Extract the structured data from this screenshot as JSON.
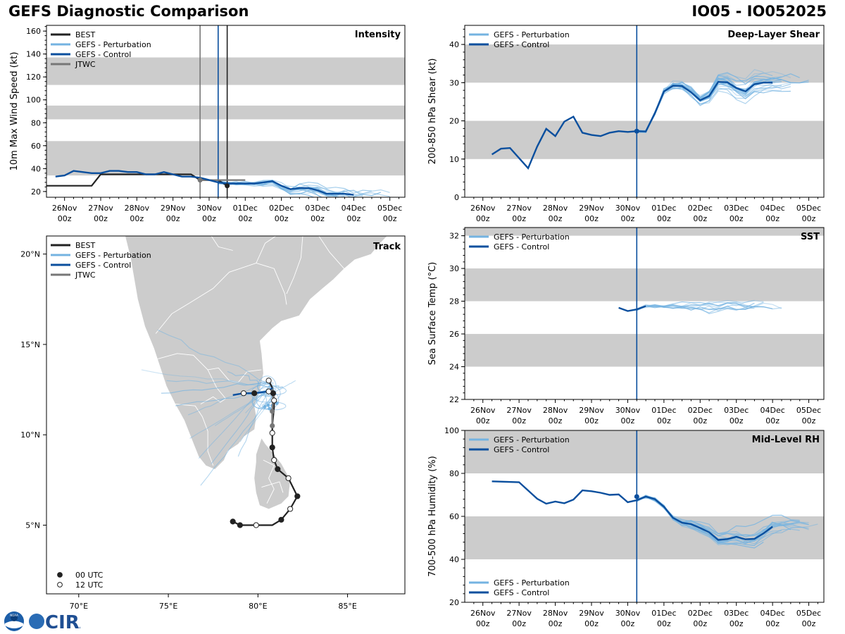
{
  "header": {
    "title": "GEFS Diagnostic Comparison",
    "storm": "IO05 - IO052025"
  },
  "colors": {
    "best": "#222222",
    "perturbation": "#74b3e1",
    "control": "#0a4f9e",
    "jtwc": "#777777",
    "band": "#cccccc",
    "land": "#cccccc",
    "init_line": "#0a4f9e"
  },
  "time_axis": {
    "labels": [
      {
        "day": "26Nov",
        "hour": "00z",
        "t": 0
      },
      {
        "day": "27Nov",
        "hour": "00z",
        "t": 24
      },
      {
        "day": "28Nov",
        "hour": "00z",
        "t": 48
      },
      {
        "day": "29Nov",
        "hour": "00z",
        "t": 72
      },
      {
        "day": "30Nov",
        "hour": "00z",
        "t": 96
      },
      {
        "day": "01Dec",
        "hour": "00z",
        "t": 120
      },
      {
        "day": "02Dec",
        "hour": "00z",
        "t": 144
      },
      {
        "day": "03Dec",
        "hour": "00z",
        "t": 168
      },
      {
        "day": "04Dec",
        "hour": "00z",
        "t": 192
      },
      {
        "day": "05Dec",
        "hour": "00z",
        "t": 216
      }
    ],
    "range_hours": [
      -12,
      226
    ],
    "init_hour": 102
  },
  "chart_data": [
    {
      "id": "intensity",
      "type": "line",
      "label": "Intensity",
      "ylabel": "10m Max Wind Speed (kt)",
      "ylim": [
        15,
        165
      ],
      "yticks": [
        20,
        40,
        60,
        80,
        100,
        120,
        140,
        160
      ],
      "bands": [
        [
          34,
          64
        ],
        [
          83,
          95
        ],
        [
          113,
          137
        ]
      ],
      "legend": [
        "BEST",
        "GEFS - Perturbation",
        "GEFS - Control",
        "JTWC"
      ],
      "vlines": [
        {
          "t": 90,
          "color": "jtwc"
        },
        {
          "t": 102,
          "color": "control"
        },
        {
          "t": 108,
          "color": "best"
        }
      ],
      "best": {
        "t": [
          -12,
          -6,
          0,
          6,
          12,
          18,
          24,
          30,
          36,
          42,
          48,
          54,
          60,
          66,
          72,
          78,
          84,
          90,
          96,
          102,
          108
        ],
        "v": [
          25,
          25,
          25,
          25,
          25,
          25,
          35,
          35,
          35,
          35,
          35,
          35,
          35,
          35,
          35,
          35,
          35,
          30,
          30,
          30,
          25
        ]
      },
      "control": {
        "t": [
          -6,
          0,
          6,
          12,
          18,
          24,
          30,
          36,
          42,
          48,
          54,
          60,
          66,
          72,
          78,
          84,
          90,
          96,
          102,
          108,
          114,
          120,
          126,
          132,
          138,
          144,
          150,
          156,
          162,
          168,
          174,
          180,
          186,
          192
        ],
        "v": [
          33,
          34,
          38,
          37,
          36,
          36,
          38,
          38,
          37,
          37,
          35,
          35,
          37,
          35,
          33,
          33,
          32,
          30,
          28,
          27,
          27,
          27,
          27,
          28,
          29,
          25,
          22,
          23,
          23,
          21,
          18,
          18,
          18,
          17
        ]
      },
      "jtwc": {
        "t": [
          90,
          96,
          102,
          108,
          114,
          120
        ],
        "v": [
          30,
          30,
          30,
          30,
          30,
          30
        ]
      },
      "points": [
        {
          "t": 90,
          "v": 30,
          "color": "jtwc"
        },
        {
          "t": 108,
          "v": 25,
          "color": "best"
        }
      ],
      "perturbations": 14
    },
    {
      "id": "shear",
      "type": "line",
      "label": "Deep-Layer Shear",
      "ylabel": "200-850 hPa Shear (kt)",
      "ylim": [
        0,
        45
      ],
      "yticks": [
        0,
        10,
        20,
        30,
        40
      ],
      "bands": [
        [
          10,
          20
        ],
        [
          30,
          40
        ]
      ],
      "legend": [
        "GEFS - Perturbation",
        "GEFS - Control"
      ],
      "control": {
        "t": [
          6,
          12,
          18,
          30,
          36,
          42,
          48,
          54,
          60,
          66,
          72,
          78,
          84,
          90,
          96,
          102,
          108,
          114,
          120,
          126,
          132,
          138,
          144,
          150,
          156,
          162,
          168,
          174,
          180,
          186,
          192
        ],
        "v": [
          11.2,
          12.7,
          12.9,
          7.6,
          13.3,
          17.9,
          16.0,
          19.8,
          21.1,
          16.9,
          16.3,
          16.0,
          16.9,
          17.3,
          17.1,
          17.3,
          17.2,
          22.0,
          27.7,
          29.2,
          29.1,
          27.5,
          25.4,
          26.5,
          30.2,
          30.1,
          28.6,
          27.7,
          29.6,
          30.0,
          30.0
        ]
      },
      "init_value": 17.3,
      "perturbations": 20
    },
    {
      "id": "sst",
      "type": "line",
      "label": "SST",
      "ylabel": "Sea Surface Temp (°C)",
      "ylim": [
        22,
        32.5
      ],
      "yticks": [
        22,
        24,
        26,
        28,
        30,
        32
      ],
      "bands": [
        [
          24,
          26
        ],
        [
          28,
          30
        ],
        [
          32,
          32.5
        ]
      ],
      "legend": [
        "GEFS - Perturbation",
        "GEFS - Control"
      ],
      "control": {
        "t": [
          90,
          96,
          102,
          108
        ],
        "v": [
          27.6,
          27.4,
          27.5,
          27.7
        ]
      },
      "perturbations": 10
    },
    {
      "id": "rh",
      "type": "line",
      "label": "Mid-Level RH",
      "ylabel": "700-500 hPa Humidity (%)",
      "ylim": [
        20,
        100
      ],
      "yticks": [
        20,
        40,
        60,
        80,
        100
      ],
      "bands": [
        [
          40,
          60
        ],
        [
          80,
          100
        ]
      ],
      "legend": [
        "GEFS - Perturbation",
        "GEFS - Control"
      ],
      "control": {
        "t": [
          6,
          24,
          36,
          42,
          48,
          54,
          60,
          66,
          72,
          78,
          84,
          90,
          96,
          102,
          108,
          114,
          120,
          126,
          132,
          138,
          144,
          150,
          156,
          162,
          168,
          174,
          180,
          186,
          192
        ],
        "v": [
          76.3,
          75.9,
          68.2,
          65.9,
          66.9,
          66.1,
          67.8,
          72.1,
          71.7,
          71.0,
          70.0,
          70.2,
          66.6,
          67.5,
          69.2,
          68.0,
          64.5,
          59.3,
          57.0,
          56.4,
          54.6,
          52.6,
          49.0,
          49.4,
          50.5,
          49.3,
          49.5,
          52.1,
          55.2
        ]
      },
      "init_value": 69.2,
      "perturbations": 18
    }
  ],
  "track": {
    "label": "Track",
    "legend": [
      "BEST",
      "GEFS - Perturbation",
      "GEFS - Control",
      "JTWC"
    ],
    "marker_legend": [
      {
        "label": "00 UTC",
        "fill": "#222222"
      },
      {
        "label": "12 UTC",
        "fill": "#ffffff"
      }
    ],
    "lon_ticks": [
      {
        "lon": 70,
        "label": "70°E"
      },
      {
        "lon": 75,
        "label": "75°E"
      },
      {
        "lon": 80,
        "label": "80°E"
      },
      {
        "lon": 85,
        "label": "85°E"
      }
    ],
    "lat_ticks": [
      {
        "lat": 5,
        "label": "5°N"
      },
      {
        "lat": 10,
        "label": "10°N"
      },
      {
        "lat": 15,
        "label": "15°N"
      },
      {
        "lat": 20,
        "label": "20°N"
      }
    ],
    "best": [
      [
        78.6,
        5.2
      ],
      [
        79.0,
        5.0
      ],
      [
        79.9,
        5.0
      ],
      [
        80.8,
        5.0
      ],
      [
        81.3,
        5.3
      ],
      [
        81.8,
        5.9
      ],
      [
        82.2,
        6.6
      ],
      [
        81.7,
        7.6
      ],
      [
        81.1,
        8.1
      ],
      [
        80.9,
        8.6
      ],
      [
        80.8,
        9.3
      ],
      [
        80.8,
        10.1
      ],
      [
        80.8,
        10.5
      ],
      [
        80.85,
        11.0
      ],
      [
        80.9,
        11.5
      ],
      [
        80.9,
        11.9
      ],
      [
        80.85,
        12.3
      ],
      [
        80.8,
        12.6
      ],
      [
        80.6,
        13.0
      ]
    ],
    "best_markers": [
      {
        "lon": 78.6,
        "lat": 5.2,
        "utc": "00"
      },
      {
        "lon": 79.0,
        "lat": 5.0,
        "utc": "00"
      },
      {
        "lon": 79.9,
        "lat": 5.0,
        "utc": "12"
      },
      {
        "lon": 81.3,
        "lat": 5.3,
        "utc": "00"
      },
      {
        "lon": 81.8,
        "lat": 5.9,
        "utc": "12"
      },
      {
        "lon": 82.2,
        "lat": 6.6,
        "utc": "00"
      },
      {
        "lon": 81.7,
        "lat": 7.6,
        "utc": "12"
      },
      {
        "lon": 81.1,
        "lat": 8.1,
        "utc": "00"
      },
      {
        "lon": 80.9,
        "lat": 8.6,
        "utc": "12"
      },
      {
        "lon": 80.8,
        "lat": 9.3,
        "utc": "00"
      },
      {
        "lon": 80.8,
        "lat": 10.1,
        "utc": "12"
      },
      {
        "lon": 80.9,
        "lat": 11.9,
        "utc": "12"
      },
      {
        "lon": 80.85,
        "lat": 12.3,
        "utc": "00"
      },
      {
        "lon": 80.6,
        "lat": 13.0,
        "utc": "12"
      }
    ],
    "control": [
      [
        80.8,
        12.6
      ],
      [
        80.6,
        12.4
      ],
      [
        79.8,
        12.3
      ],
      [
        79.2,
        12.3
      ],
      [
        78.6,
        12.2
      ]
    ],
    "control_markers": [
      {
        "lon": 80.6,
        "lat": 12.4,
        "utc": "12"
      },
      {
        "lon": 79.8,
        "lat": 12.3,
        "utc": "00"
      },
      {
        "lon": 79.2,
        "lat": 12.3,
        "utc": "12"
      }
    ],
    "jtwc": [
      [
        80.8,
        10.5
      ],
      [
        80.8,
        11.3
      ],
      [
        80.85,
        12.0
      ],
      [
        80.8,
        12.6
      ]
    ],
    "jtwc_markers": [
      {
        "lon": 80.8,
        "lat": 10.5
      },
      {
        "lon": 80.8,
        "lat": 11.3
      }
    ]
  },
  "logo": {
    "noaa": "NOAA",
    "cira": "CIRA"
  }
}
